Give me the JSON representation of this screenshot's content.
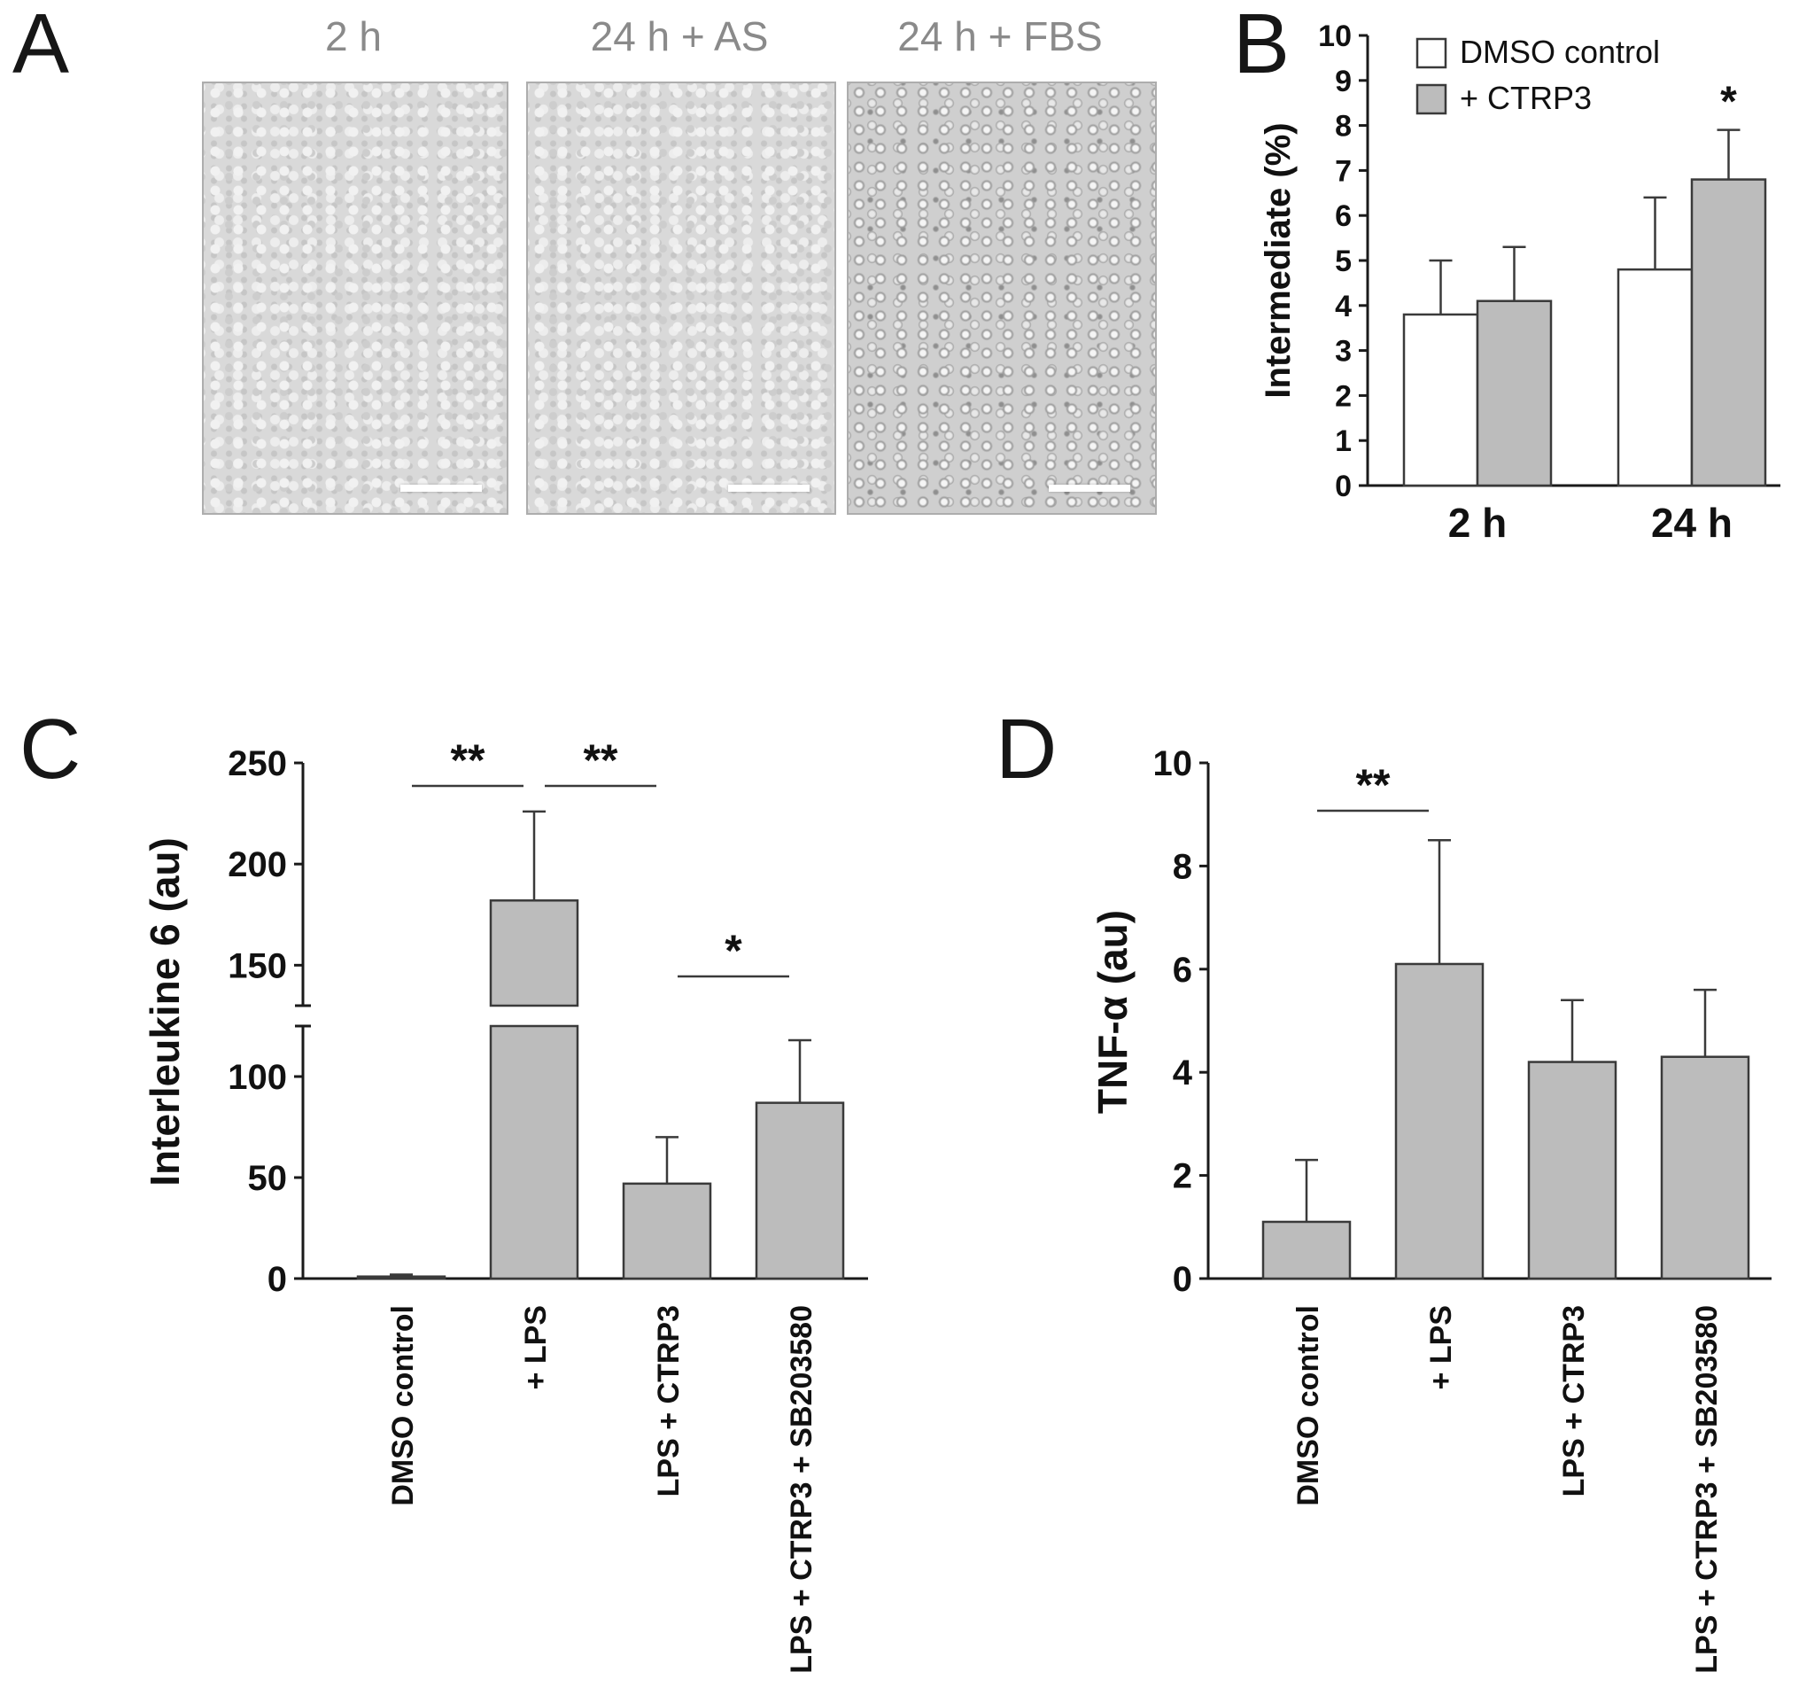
{
  "figure": {
    "panels": {
      "a": "A",
      "b": "B",
      "c": "C",
      "d": "D"
    }
  },
  "panel_a": {
    "image_labels": [
      "2 h",
      "24 h + AS",
      "24 h + FBS"
    ]
  },
  "colors": {
    "bar_gray": "#bcbcbc",
    "bar_white": "#ffffff",
    "micrograph_label_gray": "#8a8a8a"
  },
  "chart_data": [
    {
      "id": "B",
      "type": "bar",
      "title": "",
      "xlabel": "",
      "ylabel": "Intermediate (%)",
      "ylim": [
        0,
        10
      ],
      "yticks": [
        0,
        1,
        2,
        3,
        4,
        5,
        6,
        7,
        8,
        9,
        10
      ],
      "categories": [
        "2 h",
        "24 h"
      ],
      "series": [
        {
          "name": "DMSO control",
          "fill": "#ffffff",
          "values": [
            3.8,
            4.8
          ],
          "errors": [
            1.2,
            1.6
          ]
        },
        {
          "name": "+ CTRP3",
          "fill": "#bcbcbc",
          "values": [
            4.1,
            6.8
          ],
          "errors": [
            1.2,
            1.1
          ]
        }
      ],
      "legend": {
        "position": "top-left"
      },
      "annotations": [
        {
          "category": "24 h",
          "series": "+ CTRP3",
          "text": "*"
        }
      ]
    },
    {
      "id": "C",
      "type": "bar",
      "title": "",
      "xlabel": "",
      "ylabel": "Interleukine 6 (au)",
      "ylim": [
        0,
        250
      ],
      "yticks": [
        0,
        50,
        100,
        150,
        200,
        250
      ],
      "axis_break": {
        "lower_max": 125,
        "upper_min": 130
      },
      "bar_fill": "#bcbcbc",
      "categories": [
        "DMSO control",
        "+ LPS",
        "LPS + CTRP3",
        "LPS + CTRP3 + SB203580"
      ],
      "values": [
        1,
        182,
        47,
        87
      ],
      "errors": [
        1,
        44,
        23,
        31
      ],
      "significance": [
        {
          "from": 0,
          "to": 1,
          "label": "**"
        },
        {
          "from": 1,
          "to": 2,
          "label": "**"
        },
        {
          "from": 2,
          "to": 3,
          "label": "*"
        }
      ]
    },
    {
      "id": "D",
      "type": "bar",
      "title": "",
      "xlabel": "",
      "ylabel": "TNF-α (au)",
      "ylim": [
        0,
        10
      ],
      "yticks": [
        0,
        2,
        4,
        6,
        8,
        10
      ],
      "bar_fill": "#bcbcbc",
      "categories": [
        "DMSO control",
        "+ LPS",
        "LPS + CTRP3",
        "LPS + CTRP3 + SB203580"
      ],
      "values": [
        1.1,
        6.1,
        4.2,
        4.3
      ],
      "errors": [
        1.2,
        2.4,
        1.2,
        1.3
      ],
      "significance": [
        {
          "from": 0,
          "to": 1,
          "label": "**"
        }
      ]
    }
  ]
}
